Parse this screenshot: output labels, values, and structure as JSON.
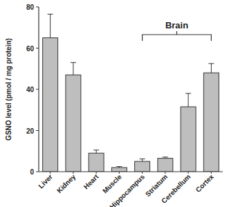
{
  "chart_data": {
    "type": "bar",
    "y_label": "GSNO level (pmol / mg protein)",
    "categories": [
      "Liver",
      "Kidney",
      "Heart",
      "Muscle",
      "Hippocampus",
      "Striatum",
      "Cerebellum",
      "Cortex"
    ],
    "values": [
      65,
      47,
      9,
      2,
      5,
      6.5,
      31.5,
      48
    ],
    "errors": [
      11.5,
      6,
      1.5,
      0.5,
      1.2,
      0.6,
      6.5,
      4.5
    ],
    "color": "#bebebe",
    "ylim": [
      0,
      80
    ],
    "yticks": [
      0,
      20,
      40,
      60,
      80
    ],
    "grid": false,
    "annotations": [
      {
        "text": "Brain",
        "from": "Hippocampus",
        "to": "Cortex"
      }
    ]
  }
}
